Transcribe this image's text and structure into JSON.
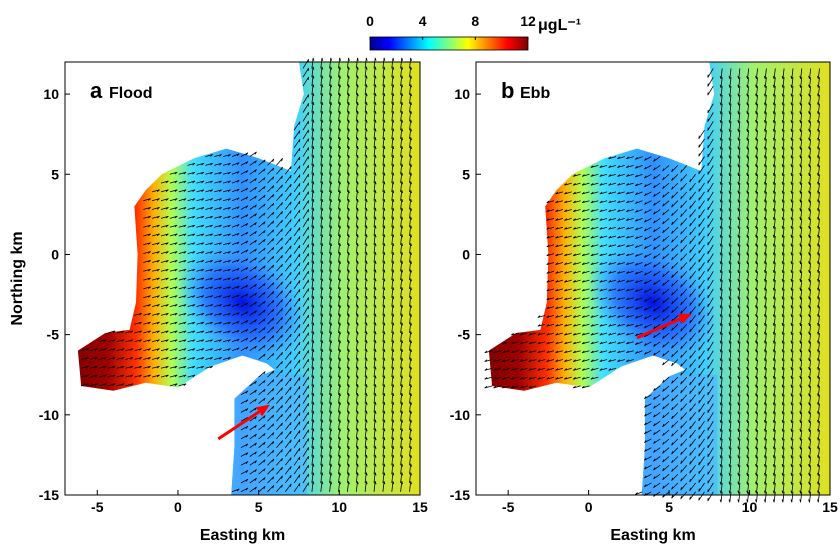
{
  "colorbar": {
    "lim": [
      0,
      12
    ],
    "ticks": [
      0,
      4,
      8,
      12
    ],
    "label": "μgL⁻¹"
  },
  "chart_data": [
    {
      "type": "quiver",
      "panel_label": "a",
      "title": "Flood",
      "xlabel": "Easting km",
      "ylabel": "Northing km",
      "xlim": [
        -7,
        15
      ],
      "ylim": [
        -15,
        12
      ],
      "xticks": [
        -5,
        0,
        5,
        10,
        15
      ],
      "yticks": [
        -15,
        -10,
        -5,
        0,
        5,
        10
      ]
    },
    {
      "type": "quiver",
      "panel_label": "b",
      "title": "Ebb",
      "xlabel": "Easting km",
      "xlim": [
        -7,
        15
      ],
      "ylim": [
        -15,
        12
      ],
      "xticks": [
        -5,
        0,
        5,
        10,
        15
      ],
      "yticks": [
        -15,
        -10,
        -5,
        0,
        5,
        10
      ]
    }
  ]
}
